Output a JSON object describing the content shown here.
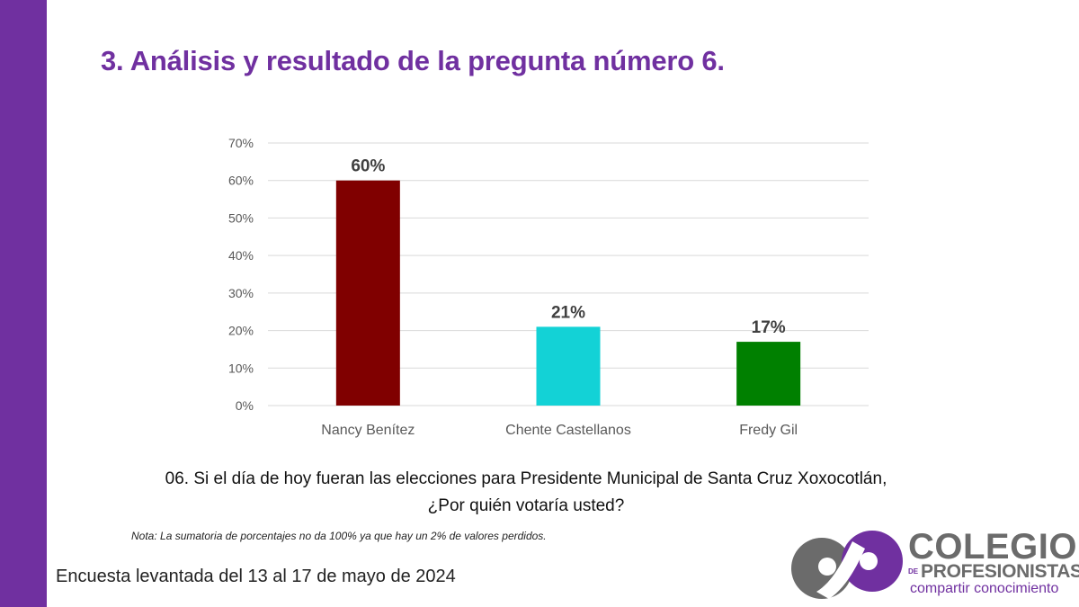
{
  "slide": {
    "title": "3. Análisis y resultado de la pregunta número 6.",
    "question_line1": "06. Si el día de hoy fueran las elecciones para Presidente Municipal de Santa Cruz Xoxocotlán,",
    "question_line2": "¿Por quién votaría usted?",
    "note": "Nota: La sumatoria de porcentajes no da 100% ya que hay un 2% de valores perdidos.",
    "survey_dates": "Encuesta levantada del 13 al 17 de mayo de 2024",
    "accent_color": "#7030a0"
  },
  "logo": {
    "name": "COLEGIO",
    "de": "DE",
    "sub": "PROFESIONISTAS",
    "tagline": "compartir conocimiento"
  },
  "chart_data": {
    "type": "bar",
    "title": "",
    "xlabel": "",
    "ylabel": "",
    "categories": [
      "Nancy Benítez",
      "Chente Castellanos",
      "Fredy Gil"
    ],
    "values": [
      60,
      21,
      17
    ],
    "data_labels": [
      "60%",
      "21%",
      "17%"
    ],
    "colors": [
      "#800000",
      "#13d2d6",
      "#008000"
    ],
    "ylim": [
      0,
      70
    ],
    "yticks": [
      0,
      10,
      20,
      30,
      40,
      50,
      60,
      70
    ],
    "ytick_labels": [
      "0%",
      "10%",
      "20%",
      "30%",
      "40%",
      "50%",
      "60%",
      "70%"
    ],
    "grid": true,
    "legend": "none"
  }
}
